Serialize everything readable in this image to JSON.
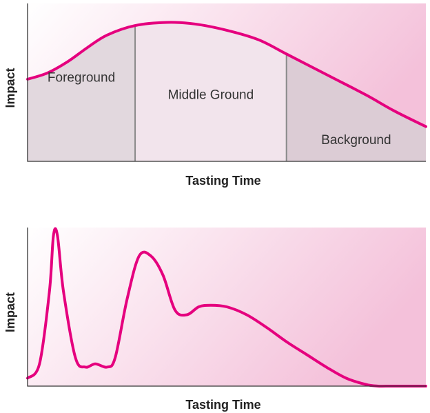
{
  "colors": {
    "curve": "#e5007e",
    "gradient_start": "#ffffff",
    "gradient_end": "#f4c1da",
    "region_foreground": "#e2d8de",
    "region_middle": "#f2e4ec",
    "region_background": "#dcccd5",
    "divider": "#8a8a8a",
    "axis": "#333333"
  },
  "chart_data": [
    {
      "type": "area",
      "xlabel": "Tasting Time",
      "ylabel": "Impact",
      "xlim": [
        0,
        100
      ],
      "ylim": [
        0,
        100
      ],
      "grid": false,
      "regions": [
        {
          "label": "Foreground",
          "start": 0,
          "end": 27
        },
        {
          "label": "Middle Ground",
          "start": 27,
          "end": 65
        },
        {
          "label": "Background",
          "start": 65,
          "end": 100
        }
      ],
      "x": [
        0,
        5,
        10,
        15,
        20,
        27,
        35,
        42,
        50,
        58,
        65,
        75,
        85,
        92,
        100
      ],
      "y": [
        52,
        56,
        63,
        72,
        80,
        86,
        88,
        87,
        83,
        77,
        68,
        55,
        42,
        32,
        22
      ]
    },
    {
      "type": "line",
      "xlabel": "Tasting Time",
      "ylabel": "Impact",
      "xlim": [
        0,
        100
      ],
      "ylim": [
        0,
        100
      ],
      "grid": false,
      "x": [
        0,
        3,
        5.5,
        6.5,
        7.5,
        9,
        12,
        14.5,
        17,
        20,
        22,
        25,
        28,
        31,
        34,
        37,
        40,
        43,
        46,
        50,
        55,
        60,
        65,
        70,
        75,
        80,
        85,
        88,
        90,
        95,
        100
      ],
      "y": [
        5,
        14,
        60,
        95,
        95,
        60,
        18,
        12,
        14,
        12,
        18,
        55,
        82,
        82,
        70,
        48,
        45,
        50,
        51,
        50,
        45,
        37,
        28,
        20,
        12,
        5,
        1,
        0,
        0,
        0,
        0
      ]
    }
  ]
}
